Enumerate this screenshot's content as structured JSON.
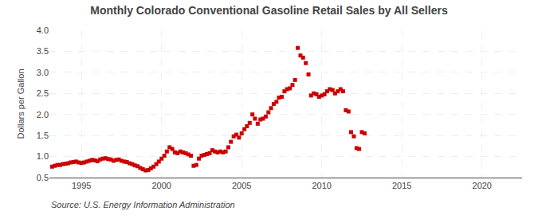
{
  "chart_data": {
    "type": "scatter",
    "title": "Monthly Colorado Conventional Gasoline Retail Sales by All Sellers",
    "ylabel": "Dollars per Gallon",
    "annotations": [
      "Source: U.S. Energy Information Administration"
    ],
    "marker": "square",
    "color": "#cc0000",
    "grid": true,
    "xlim": [
      1993.0,
      2022.5
    ],
    "xticks": [
      1995,
      2000,
      2005,
      2010,
      2015,
      2020
    ],
    "ylim": [
      0.5,
      4.0
    ],
    "yticks": [
      0.5,
      {
        "value": 1.0,
        "label": "1.0"
      },
      1.5,
      {
        "value": 2.0,
        "label": "2.0"
      },
      2.5,
      {
        "value": 3.0,
        "label": "3.0"
      },
      3.5,
      {
        "value": 4.0,
        "label": "4.0"
      }
    ],
    "x": [
      1993.17,
      1993.33,
      1993.5,
      1993.67,
      1993.83,
      1994.0,
      1994.17,
      1994.33,
      1994.5,
      1994.67,
      1994.83,
      1995.0,
      1995.17,
      1995.33,
      1995.5,
      1995.67,
      1995.83,
      1996.0,
      1996.17,
      1996.33,
      1996.5,
      1996.67,
      1996.83,
      1997.0,
      1997.17,
      1997.33,
      1997.5,
      1997.67,
      1997.83,
      1998.0,
      1998.17,
      1998.33,
      1998.5,
      1998.67,
      1998.83,
      1999.0,
      1999.17,
      1999.33,
      1999.5,
      1999.67,
      1999.83,
      2000.0,
      2000.17,
      2000.33,
      2000.5,
      2000.67,
      2000.83,
      2001.0,
      2001.17,
      2001.33,
      2001.5,
      2001.67,
      2001.83,
      2002.0,
      2002.17,
      2002.33,
      2002.5,
      2002.67,
      2002.83,
      2003.0,
      2003.17,
      2003.33,
      2003.5,
      2003.67,
      2003.83,
      2004.0,
      2004.17,
      2004.33,
      2004.5,
      2004.67,
      2004.83,
      2005.0,
      2005.17,
      2005.33,
      2005.5,
      2005.67,
      2005.83,
      2006.0,
      2006.17,
      2006.33,
      2006.5,
      2006.67,
      2006.83,
      2007.0,
      2007.17,
      2007.33,
      2007.5,
      2007.67,
      2007.83,
      2008.0,
      2008.17,
      2008.33,
      2008.5,
      2008.67,
      2008.83,
      2009.0,
      2009.17,
      2009.33,
      2009.5,
      2009.67,
      2009.83,
      2010.0,
      2010.17,
      2010.33,
      2010.5,
      2010.67,
      2010.83,
      2011.0,
      2011.17,
      2011.33,
      2011.5,
      2011.67,
      2011.83,
      2012.0,
      2012.17,
      2012.33,
      2012.5,
      2012.67
    ],
    "values": [
      0.76,
      0.78,
      0.8,
      0.8,
      0.82,
      0.83,
      0.84,
      0.86,
      0.87,
      0.88,
      0.86,
      0.85,
      0.86,
      0.88,
      0.9,
      0.92,
      0.91,
      0.89,
      0.93,
      0.95,
      0.96,
      0.94,
      0.93,
      0.9,
      0.92,
      0.93,
      0.9,
      0.88,
      0.87,
      0.84,
      0.82,
      0.79,
      0.77,
      0.73,
      0.7,
      0.67,
      0.68,
      0.72,
      0.76,
      0.82,
      0.88,
      0.95,
      1.02,
      1.12,
      1.22,
      1.18,
      1.1,
      1.08,
      1.12,
      1.1,
      1.08,
      1.05,
      1.02,
      0.78,
      0.8,
      0.95,
      1.02,
      1.04,
      1.06,
      1.08,
      1.15,
      1.12,
      1.1,
      1.12,
      1.1,
      1.12,
      1.22,
      1.35,
      1.48,
      1.52,
      1.45,
      1.55,
      1.65,
      1.72,
      1.8,
      2.0,
      1.9,
      1.78,
      1.88,
      1.9,
      1.95,
      2.05,
      2.15,
      2.25,
      2.3,
      2.4,
      2.42,
      2.55,
      2.6,
      2.62,
      2.7,
      2.82,
      3.58,
      3.4,
      3.35,
      3.22,
      2.95,
      2.45,
      2.5,
      2.48,
      2.42,
      2.45,
      2.48,
      2.55,
      2.6,
      2.58,
      2.5,
      2.55,
      2.6,
      2.55,
      2.1,
      2.07,
      1.58,
      1.48,
      1.2,
      1.18,
      1.58,
      1.55
    ]
  }
}
